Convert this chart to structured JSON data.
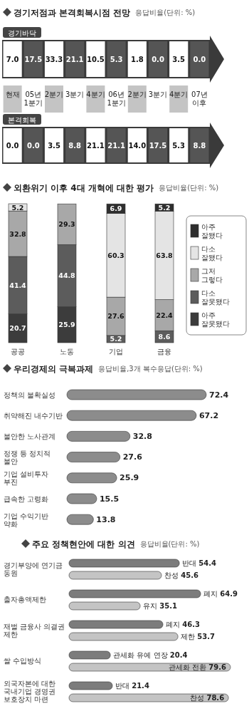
{
  "chart_data": [
    {
      "type": "other",
      "title": "경기저점과 본격회복시점 전망",
      "subtitle": "응답비율(단위: %)",
      "categories": [
        "현재",
        "05년 1분기",
        "2분기",
        "3분기",
        "4분기",
        "06년 1분기",
        "2분기",
        "3분기",
        "4분기",
        "07년 이후"
      ],
      "series": [
        {
          "name": "경기바닥",
          "colors": [
            "#ffffff",
            "#555555",
            "#ffffff",
            "#555555",
            "#ffffff",
            "#555555",
            "#ffffff",
            "#555555",
            "#ffffff",
            "#555555"
          ],
          "values": [
            7.0,
            17.5,
            33.3,
            21.1,
            10.5,
            5.3,
            1.8,
            0.0,
            3.5,
            0.0
          ],
          "value_labels": [
            "7.0",
            "17.5",
            "33.3",
            "21.1",
            "10.5",
            "5.3",
            "1.8",
            "0.0",
            "3.5",
            "0.0"
          ]
        },
        {
          "name": "본격회복",
          "colors": [
            "#ffffff",
            "#555555",
            "#ffffff",
            "#555555",
            "#ffffff",
            "#555555",
            "#ffffff",
            "#555555",
            "#ffffff",
            "#555555"
          ],
          "values": [
            0.0,
            0.0,
            3.5,
            8.8,
            21.1,
            21.1,
            14.0,
            17.5,
            5.3,
            8.8
          ],
          "value_labels": [
            "0.0",
            "0.0",
            "3.5",
            "8.8",
            "21.1",
            "21.1",
            "14.0",
            "17.5",
            "5.3",
            "8.8"
          ]
        }
      ]
    },
    {
      "type": "bar",
      "stacked": true,
      "title": "외환위기 이후 4대 개혁에 대한 평가",
      "subtitle": "응답비율(단위: %)",
      "categories": [
        "공공",
        "노동",
        "기업",
        "금융"
      ],
      "data_labels": true,
      "legend": "right",
      "series": [
        {
          "name": "아주 잘못됐다",
          "color": "#3c3c3c",
          "values": [
            20.7,
            25.9,
            null,
            null
          ]
        },
        {
          "name": "다소 잘못됐다",
          "color": "#5c5c5c",
          "values": [
            41.4,
            44.8,
            5.2,
            8.6
          ]
        },
        {
          "name": "그저 그렇다",
          "color": "#a8a8a8",
          "values": [
            32.8,
            29.3,
            27.6,
            22.4
          ]
        },
        {
          "name": "다소 잘됐다",
          "color": "#e4e4e4",
          "values": [
            5.2,
            null,
            60.3,
            63.8
          ]
        },
        {
          "name": "아주 잘됐다",
          "color": "#2e2e2e",
          "values": [
            null,
            null,
            6.9,
            5.2
          ]
        }
      ]
    },
    {
      "type": "bar",
      "orientation": "horizontal",
      "title": "우리경제의 극복과제",
      "subtitle": "응답비율,3개 복수응답(단위: %)",
      "categories": [
        "정책의 불확실성",
        "취약해진 내수기반",
        "불안한 노사관계",
        "정쟁 등 정치적 불안",
        "기업 설비투자 부진",
        "급속한 고령화",
        "기업 수익기반 약화"
      ],
      "values": [
        72.4,
        67.2,
        32.8,
        27.6,
        25.9,
        15.5,
        13.8
      ],
      "color": "#8c8c8c",
      "data_labels": true
    },
    {
      "type": "bar",
      "orientation": "horizontal",
      "title": "주요 정책현안에 대한 의견",
      "subtitle": "응답비율(단위: %)",
      "categories": [
        "경기부양에 연기금 동원",
        "출자총액제한",
        "재벌 금융사 의결권 제한",
        "쌀 수입방식",
        "외국자본에 대한 국내기업 경영권 보호장치 마련"
      ],
      "series": [
        {
          "color": "#7c7c7c",
          "values": [
            54.4,
            64.9,
            46.3,
            20.4,
            21.4
          ],
          "value_labels": [
            "반대 54.4",
            "폐지 64.9",
            "폐지 46.3",
            "관세화 유예 연장 20.4",
            "반대 21.4"
          ]
        },
        {
          "color": "#c4c4c4",
          "values": [
            45.6,
            35.1,
            53.7,
            79.6,
            78.6
          ],
          "value_labels": [
            "찬성 45.6",
            "유지 35.1",
            "제한 53.7",
            "관세화 전환 79.6",
            "찬성 78.6"
          ]
        }
      ]
    }
  ]
}
